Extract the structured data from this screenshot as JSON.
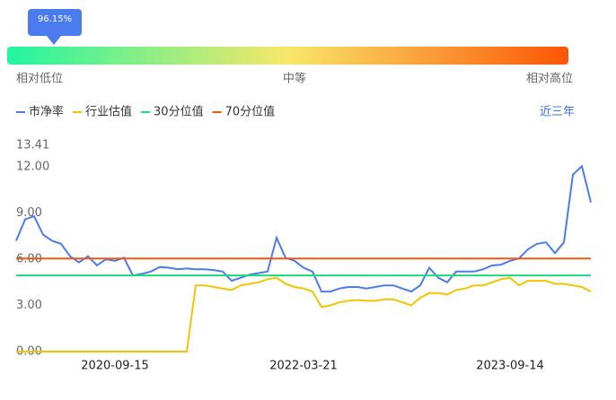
{
  "gauge": {
    "indicator": "96.15%",
    "labels": [
      "相对低位",
      "中等",
      "相对高位"
    ]
  },
  "range_button": "近三年",
  "chart_data": {
    "type": "line",
    "categories": [
      null,
      null,
      null,
      null,
      null,
      null,
      null,
      null,
      null,
      null,
      null,
      "2020-09-15",
      null,
      null,
      null,
      null,
      null,
      null,
      null,
      null,
      null,
      null,
      null,
      null,
      null,
      null,
      null,
      null,
      null,
      null,
      null,
      null,
      "2022-03-21",
      null,
      null,
      null,
      null,
      null,
      null,
      null,
      null,
      null,
      null,
      null,
      null,
      null,
      null,
      null,
      null,
      null,
      null,
      null,
      null,
      null,
      null,
      "2023-09-14",
      null,
      null,
      null,
      null,
      null,
      null,
      null,
      null,
      null
    ],
    "series": [
      {
        "name": "市净率",
        "color": "#4a7cf0",
        "values": [
          7.2,
          8.6,
          8.8,
          7.6,
          7.2,
          7.0,
          6.2,
          5.8,
          6.2,
          5.6,
          6.0,
          5.9,
          6.1,
          4.95,
          5.05,
          5.2,
          5.5,
          5.45,
          5.35,
          5.4,
          5.35,
          5.35,
          5.3,
          5.2,
          4.6,
          4.8,
          5.0,
          5.1,
          5.2,
          7.4,
          6.1,
          5.9,
          5.45,
          5.2,
          3.9,
          3.9,
          4.1,
          4.2,
          4.2,
          4.1,
          4.2,
          4.3,
          4.3,
          4.1,
          3.9,
          4.3,
          5.45,
          4.8,
          4.5,
          5.2,
          5.2,
          5.2,
          5.35,
          5.6,
          5.65,
          5.9,
          6.05,
          6.65,
          7.0,
          7.1,
          6.4,
          7.1,
          11.5,
          12.05,
          9.7
        ]
      },
      {
        "name": "行业估值",
        "color": "#f5c400",
        "values": [
          0,
          0,
          0,
          0,
          0,
          0,
          0,
          0,
          0,
          0,
          0,
          0,
          0,
          0,
          0,
          0,
          0,
          0,
          0,
          0,
          4.3,
          4.3,
          4.2,
          4.1,
          4.0,
          4.3,
          4.4,
          4.5,
          4.7,
          4.8,
          4.4,
          4.2,
          4.1,
          3.9,
          2.9,
          3.0,
          3.2,
          3.3,
          3.35,
          3.3,
          3.3,
          3.4,
          3.4,
          3.2,
          3.0,
          3.5,
          3.8,
          3.8,
          3.7,
          4.0,
          4.1,
          4.3,
          4.3,
          4.5,
          4.7,
          4.8,
          4.3,
          4.6,
          4.6,
          4.6,
          4.4,
          4.4,
          4.3,
          4.2,
          3.9
        ]
      },
      {
        "name": "30分位值",
        "color": "#1ed87c",
        "value": 4.95
      },
      {
        "name": "70分位值",
        "color": "#f0590e",
        "value": 6.05
      }
    ],
    "ylim": [
      0,
      13.41
    ],
    "yticks": [
      {
        "value": 0,
        "label": "0.00"
      },
      {
        "value": 3,
        "label": "3.00"
      },
      {
        "value": 6,
        "label": "6.00"
      },
      {
        "value": 9,
        "label": "9.00"
      },
      {
        "value": 12,
        "label": "12.00"
      },
      13.41
    ]
  }
}
